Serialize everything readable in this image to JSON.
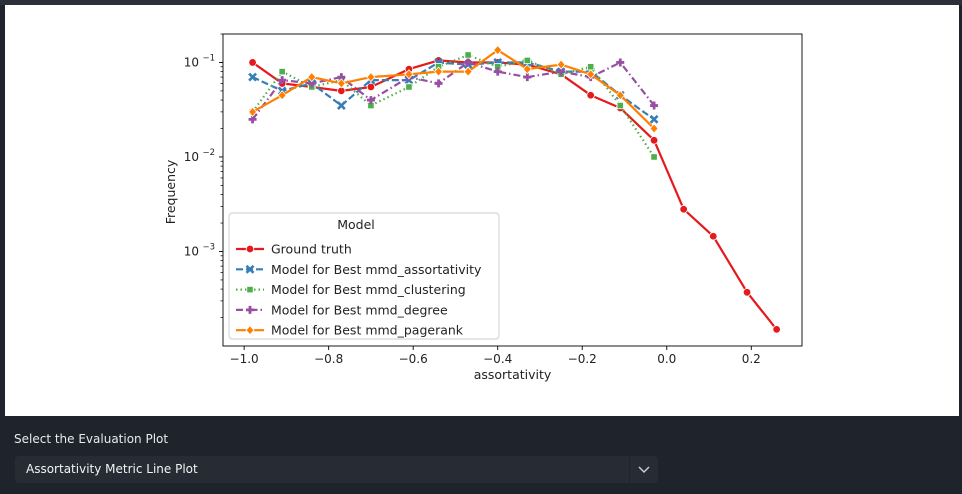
{
  "controls": {
    "select_label": "Select the Evaluation Plot",
    "selected_option": "Assortativity Metric Line Plot",
    "chevron_icon": "chevron-down-icon"
  },
  "chart_data": {
    "type": "line",
    "xlabel": "assortativity",
    "ylabel": "Frequency",
    "xlim": [
      -1.05,
      0.32
    ],
    "ylim": [
      0.0001,
      0.2
    ],
    "yscale": "log",
    "grid": false,
    "legend": {
      "title": "Model",
      "placement": "lower-left"
    },
    "x_ticks": [
      {
        "value": -1.0,
        "label": "−1.0"
      },
      {
        "value": -0.8,
        "label": "−0.8"
      },
      {
        "value": -0.6,
        "label": "−0.6"
      },
      {
        "value": -0.4,
        "label": "−0.4"
      },
      {
        "value": -0.2,
        "label": "−0.2"
      },
      {
        "value": 0.0,
        "label": "0.0"
      },
      {
        "value": 0.2,
        "label": "0.2"
      }
    ],
    "y_ticks": [
      {
        "value": 0.1,
        "base": "10",
        "exp": "−1"
      },
      {
        "value": 0.01,
        "base": "10",
        "exp": "−2"
      },
      {
        "value": 0.001,
        "base": "10",
        "exp": "−3"
      }
    ],
    "series": [
      {
        "name": "Ground truth",
        "color": "#e41a1c",
        "dash": "solid",
        "marker": "circle",
        "x": [
          -0.98,
          -0.91,
          -0.84,
          -0.77,
          -0.7,
          -0.61,
          -0.54,
          -0.47,
          -0.4,
          -0.33,
          -0.25,
          -0.18,
          -0.11,
          -0.03,
          0.04,
          0.11,
          0.19,
          0.26
        ],
        "y": [
          0.1,
          0.06,
          0.055,
          0.05,
          0.055,
          0.085,
          0.105,
          0.1,
          0.1,
          0.095,
          0.075,
          0.045,
          0.033,
          0.015,
          0.0028,
          0.00145,
          0.00037,
          0.00015
        ]
      },
      {
        "name": "Model for Best mmd_assortativity",
        "color": "#377eb8",
        "dash": "dashed",
        "marker": "x",
        "x": [
          -0.98,
          -0.91,
          -0.84,
          -0.77,
          -0.7,
          -0.61,
          -0.54,
          -0.47,
          -0.4,
          -0.33,
          -0.25,
          -0.18,
          -0.11,
          -0.03
        ],
        "y": [
          0.07,
          0.05,
          0.06,
          0.035,
          0.065,
          0.065,
          0.1,
          0.095,
          0.1,
          0.1,
          0.08,
          0.08,
          0.045,
          0.025
        ]
      },
      {
        "name": "Model for Best mmd_clustering",
        "color": "#4daf4a",
        "dash": "dotted",
        "marker": "square",
        "x": [
          -0.98,
          -0.91,
          -0.84,
          -0.77,
          -0.7,
          -0.61,
          -0.54,
          -0.47,
          -0.4,
          -0.33,
          -0.25,
          -0.18,
          -0.11,
          -0.03
        ],
        "y": [
          0.03,
          0.08,
          0.055,
          0.065,
          0.035,
          0.055,
          0.09,
          0.12,
          0.09,
          0.105,
          0.075,
          0.09,
          0.035,
          0.01
        ]
      },
      {
        "name": "Model for Best mmd_degree",
        "color": "#984ea3",
        "dash": "dashdot",
        "marker": "plus",
        "x": [
          -0.98,
          -0.91,
          -0.84,
          -0.77,
          -0.7,
          -0.61,
          -0.54,
          -0.47,
          -0.4,
          -0.33,
          -0.25,
          -0.18,
          -0.11,
          -0.03
        ],
        "y": [
          0.025,
          0.065,
          0.06,
          0.07,
          0.04,
          0.07,
          0.06,
          0.1,
          0.08,
          0.07,
          0.08,
          0.07,
          0.1,
          0.035
        ]
      },
      {
        "name": "Model for Best mmd_pagerank",
        "color": "#ff7f00",
        "dash": "solid",
        "marker": "diamond",
        "x": [
          -0.98,
          -0.91,
          -0.84,
          -0.77,
          -0.7,
          -0.61,
          -0.54,
          -0.47,
          -0.4,
          -0.33,
          -0.25,
          -0.18,
          -0.11,
          -0.03
        ],
        "y": [
          0.03,
          0.045,
          0.07,
          0.06,
          0.07,
          0.075,
          0.08,
          0.08,
          0.135,
          0.085,
          0.095,
          0.075,
          0.045,
          0.02
        ]
      }
    ]
  }
}
